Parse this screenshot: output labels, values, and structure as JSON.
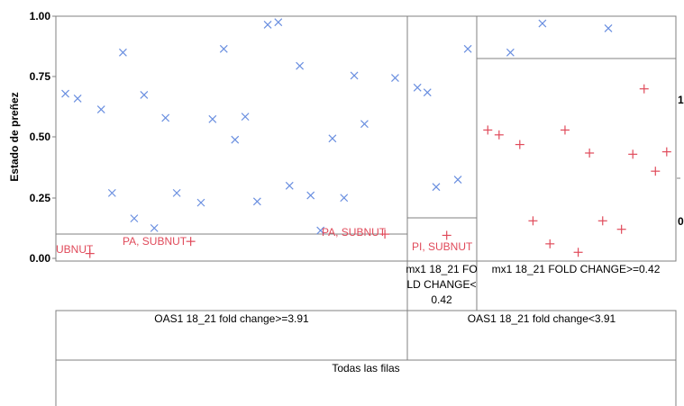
{
  "chart_data": {
    "type": "scatter",
    "title": "",
    "ylabel": "Estado de preñez",
    "xlabel": "",
    "ylim": [
      0,
      1
    ],
    "y_ticks": [
      "0.00",
      "0.25",
      "0.50",
      "0.75",
      "1.00"
    ],
    "right_axis_ticks": [
      "1",
      "0"
    ],
    "colors": {
      "pregnant": "#6a8fe0",
      "not_pregnant": "#e04a5a",
      "frame": "#808080"
    },
    "split_lines": {
      "left": 0.1,
      "middle": 0.16,
      "right": 0.82
    },
    "panels": [
      {
        "id": "left",
        "x_range": [
          0,
          1
        ],
        "pregnant_points": [
          {
            "x": 0.012,
            "y": 0.68
          },
          {
            "x": 0.048,
            "y": 0.66
          },
          {
            "x": 0.117,
            "y": 0.615
          },
          {
            "x": 0.149,
            "y": 0.27
          },
          {
            "x": 0.181,
            "y": 0.85
          },
          {
            "x": 0.214,
            "y": 0.165
          },
          {
            "x": 0.243,
            "y": 0.675
          },
          {
            "x": 0.273,
            "y": 0.125
          },
          {
            "x": 0.306,
            "y": 0.58
          },
          {
            "x": 0.339,
            "y": 0.27
          },
          {
            "x": 0.41,
            "y": 0.23
          },
          {
            "x": 0.444,
            "y": 0.575
          },
          {
            "x": 0.477,
            "y": 0.865
          },
          {
            "x": 0.51,
            "y": 0.49
          },
          {
            "x": 0.54,
            "y": 0.585
          },
          {
            "x": 0.575,
            "y": 0.235
          },
          {
            "x": 0.606,
            "y": 0.965
          },
          {
            "x": 0.637,
            "y": 0.975
          },
          {
            "x": 0.67,
            "y": 0.3
          },
          {
            "x": 0.7,
            "y": 0.795
          },
          {
            "x": 0.732,
            "y": 0.26
          },
          {
            "x": 0.761,
            "y": 0.115
          },
          {
            "x": 0.796,
            "y": 0.495
          },
          {
            "x": 0.83,
            "y": 0.25
          },
          {
            "x": 0.86,
            "y": 0.755
          },
          {
            "x": 0.89,
            "y": 0.555
          },
          {
            "x": 0.98,
            "y": 0.745
          }
        ],
        "not_pregnant_points": [
          {
            "x": 0.084,
            "y": 0.02
          },
          {
            "x": 0.38,
            "y": 0.07
          },
          {
            "x": 0.95,
            "y": 0.1
          }
        ]
      },
      {
        "id": "middle",
        "x_range": [
          0,
          1
        ],
        "pregnant_points": [
          {
            "x": 0.08,
            "y": 0.705
          },
          {
            "x": 0.25,
            "y": 0.685
          },
          {
            "x": 0.4,
            "y": 0.295
          },
          {
            "x": 0.77,
            "y": 0.325
          },
          {
            "x": 0.94,
            "y": 0.865
          }
        ],
        "not_pregnant_points": [
          {
            "x": 0.58,
            "y": 0.095
          }
        ]
      },
      {
        "id": "right",
        "x_range": [
          0,
          1
        ],
        "pregnant_points": [
          {
            "x": 0.15,
            "y": 0.85
          },
          {
            "x": 0.32,
            "y": 0.97
          },
          {
            "x": 0.67,
            "y": 0.95
          }
        ],
        "not_pregnant_points": [
          {
            "x": 0.03,
            "y": 0.53
          },
          {
            "x": 0.09,
            "y": 0.51
          },
          {
            "x": 0.2,
            "y": 0.47
          },
          {
            "x": 0.27,
            "y": 0.155
          },
          {
            "x": 0.36,
            "y": 0.06
          },
          {
            "x": 0.44,
            "y": 0.53
          },
          {
            "x": 0.51,
            "y": 0.025
          },
          {
            "x": 0.57,
            "y": 0.435
          },
          {
            "x": 0.64,
            "y": 0.155
          },
          {
            "x": 0.74,
            "y": 0.12
          },
          {
            "x": 0.8,
            "y": 0.43
          },
          {
            "x": 0.86,
            "y": 0.7
          },
          {
            "x": 0.92,
            "y": 0.36
          },
          {
            "x": 0.98,
            "y": 0.44
          }
        ]
      }
    ],
    "point_labels": {
      "left_edge": "UBNUT",
      "left_mid": "PA, SUBNUT",
      "left_right": "PA, SUBNUT",
      "middle": "PI, SUBNUT"
    },
    "tree_labels": {
      "middle_leaf": [
        "mx1 18_21 FO",
        "LD CHANGE<",
        "0.42"
      ],
      "right_leaf": "mx1 18_21 FOLD CHANGE>=0.42",
      "left_split": "OAS1 18_21 fold change>=3.91",
      "right_split": "OAS1 18_21 fold change<3.91",
      "root": "Todas las filas"
    }
  }
}
